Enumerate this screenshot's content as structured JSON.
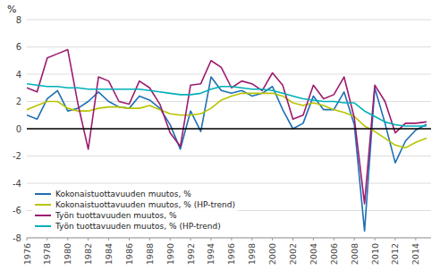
{
  "chart_data": {
    "type": "line",
    "ylabel": "%",
    "x": [
      1976,
      1977,
      1978,
      1979,
      1980,
      1981,
      1982,
      1983,
      1984,
      1985,
      1986,
      1987,
      1988,
      1989,
      1990,
      1991,
      1992,
      1993,
      1994,
      1995,
      1996,
      1997,
      1998,
      1999,
      2000,
      2001,
      2002,
      2003,
      2004,
      2005,
      2006,
      2007,
      2008,
      2009,
      2010,
      2011,
      2012,
      2013,
      2014,
      2015
    ],
    "series": [
      {
        "name": "Kokonaistuottavuuden muutos, %",
        "color": "#1f6eb5",
        "values": [
          1.0,
          0.7,
          2.2,
          2.8,
          1.3,
          1.5,
          2.0,
          2.7,
          2.0,
          1.6,
          1.5,
          2.4,
          2.1,
          1.5,
          0.3,
          -1.5,
          1.3,
          -0.2,
          3.8,
          2.8,
          2.6,
          2.8,
          2.4,
          2.6,
          3.1,
          1.4,
          0.0,
          0.4,
          2.4,
          1.4,
          1.4,
          2.7,
          0.3,
          -7.5,
          3.0,
          0.4,
          -2.5,
          -0.9,
          -0.1,
          0.3
        ]
      },
      {
        "name": "Kokonaistuottavuuden muutos, % (HP-trend)",
        "color": "#b8c400",
        "values": [
          1.4,
          1.7,
          2.0,
          2.0,
          1.5,
          1.3,
          1.3,
          1.5,
          1.6,
          1.6,
          1.5,
          1.5,
          1.7,
          1.4,
          1.1,
          1.0,
          1.0,
          1.1,
          1.5,
          2.1,
          2.4,
          2.6,
          2.6,
          2.6,
          2.6,
          2.4,
          1.9,
          1.7,
          1.9,
          1.7,
          1.4,
          1.2,
          0.9,
          0.2,
          -0.2,
          -0.7,
          -1.2,
          -1.4,
          -1.0,
          -0.7
        ]
      },
      {
        "name": "Työn tuottavuuden muutos, %",
        "color": "#9c1a6f",
        "values": [
          3.0,
          2.7,
          5.2,
          5.5,
          5.8,
          1.8,
          -1.5,
          3.8,
          3.5,
          2.0,
          1.8,
          3.5,
          3.0,
          1.8,
          -0.3,
          -1.3,
          3.2,
          3.3,
          5.0,
          4.5,
          3.0,
          3.5,
          3.3,
          2.8,
          4.1,
          3.2,
          0.7,
          1.0,
          3.2,
          2.2,
          2.5,
          3.8,
          0.8,
          -5.5,
          3.2,
          2.0,
          -0.3,
          0.4,
          0.4,
          0.5
        ]
      },
      {
        "name": "Työn tuottavuuden muutos, % (HP-trend)",
        "color": "#00b0b8",
        "values": [
          3.3,
          3.2,
          3.1,
          3.1,
          3.0,
          3.0,
          2.9,
          2.9,
          2.9,
          2.9,
          2.9,
          2.9,
          2.8,
          2.7,
          2.6,
          2.5,
          2.5,
          2.6,
          2.9,
          3.1,
          3.1,
          3.0,
          2.9,
          2.9,
          2.8,
          2.6,
          2.4,
          2.2,
          2.1,
          2.0,
          2.0,
          1.9,
          1.9,
          1.3,
          0.9,
          0.5,
          0.3,
          0.2,
          0.2,
          0.2
        ]
      }
    ],
    "xlim": [
      1976,
      2015.5
    ],
    "xticks": [
      1976,
      1978,
      1980,
      1982,
      1984,
      1986,
      1988,
      1990,
      1992,
      1994,
      1996,
      1998,
      2000,
      2002,
      2004,
      2006,
      2008,
      2010,
      2012,
      2014
    ],
    "ylim": [
      -8,
      8
    ],
    "yticks": [
      -8,
      -6,
      -4,
      -2,
      0,
      2,
      4,
      6,
      8
    ],
    "grid": true,
    "legend": "lower left"
  }
}
